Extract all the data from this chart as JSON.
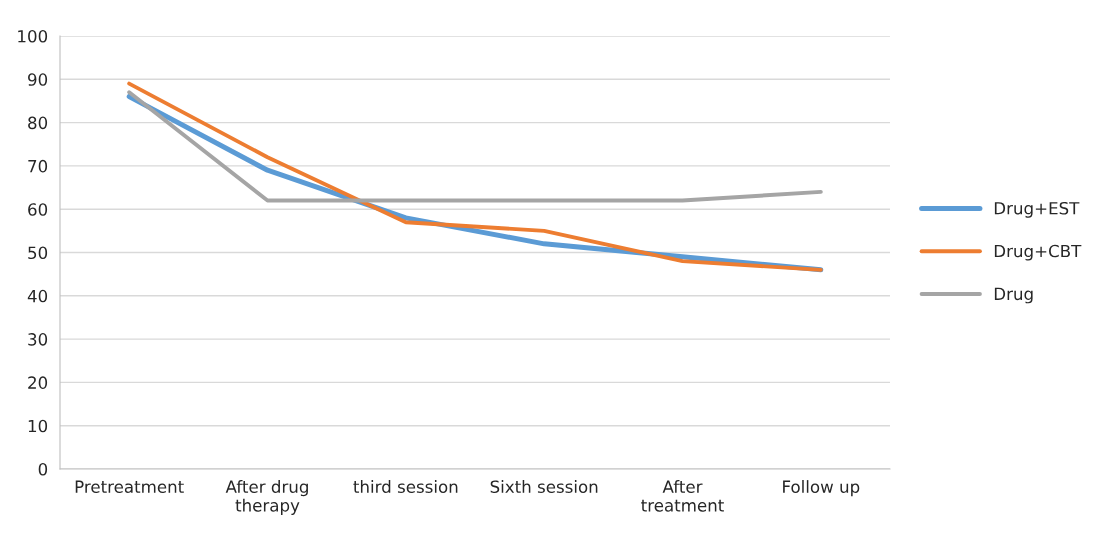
{
  "chart_data": {
    "type": "line",
    "categories": [
      "Pretreatment",
      "After drug\ntherapy",
      "third session",
      "Sixth session",
      "After\ntreatment",
      "Follow up"
    ],
    "series": [
      {
        "name": "Drug+EST",
        "color": "#5b9bd5",
        "values": [
          86,
          69,
          58,
          52,
          49,
          46
        ]
      },
      {
        "name": "Drug+CBT",
        "color": "#ed7d31",
        "values": [
          89,
          72,
          57,
          55,
          48,
          46
        ]
      },
      {
        "name": "Drug",
        "color": "#a5a5a5",
        "values": [
          87,
          62,
          62,
          62,
          62,
          64
        ]
      }
    ],
    "ylim": [
      0,
      100
    ],
    "yticks": [
      0,
      10,
      20,
      30,
      40,
      50,
      60,
      70,
      80,
      90,
      100
    ],
    "grid": "y",
    "legend": "right",
    "marker": "none",
    "line_style": "solid"
  }
}
